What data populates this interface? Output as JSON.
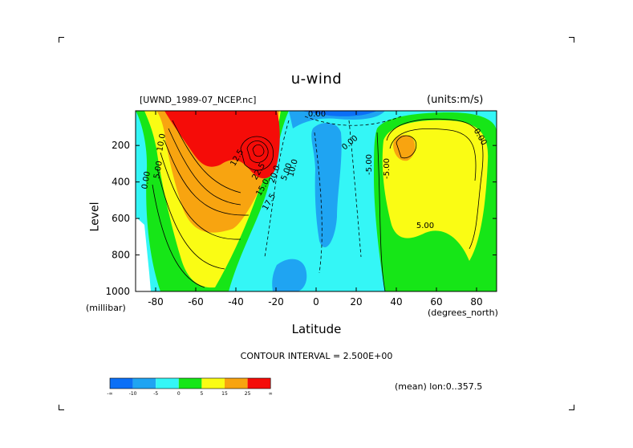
{
  "chart_data": {
    "type": "heatmap",
    "title": "u-wind",
    "dataset": "[UWND_1989-07_NCEP.nc]",
    "units": "(units:m/s)",
    "xlabel": "Latitude",
    "x_unit": "(degrees_north)",
    "ylabel": "Level",
    "y_unit": "(millibar)",
    "xlim": [
      -90,
      90
    ],
    "ylim": [
      1000,
      10
    ],
    "x_ticks": [
      -80,
      -60,
      -40,
      -20,
      0,
      20,
      40,
      60,
      80
    ],
    "y_ticks": [
      200,
      400,
      600,
      800,
      1000
    ],
    "contour_interval": "CONTOUR INTERVAL = 2.500E+00",
    "footnote": "(mean) lon:0..357.5",
    "colorbar": {
      "labels": [
        "-∞",
        "-10",
        "-5",
        "0",
        "5",
        "15",
        "25",
        "∞"
      ],
      "colors": [
        "#0b6ff6",
        "#1fa4f2",
        "#34f6f6",
        "#16e617",
        "#fafc14",
        "#f8a410",
        "#f50c08"
      ]
    },
    "contour_labels": [
      "10.0",
      "5.00",
      "0.00",
      "12.5",
      "22.5",
      "15.0",
      "17.5",
      "20.0",
      "5.00",
      "10.0",
      "0.00",
      "0.00",
      "-5.00",
      "-5.00",
      "5.00",
      "0.00"
    ]
  }
}
